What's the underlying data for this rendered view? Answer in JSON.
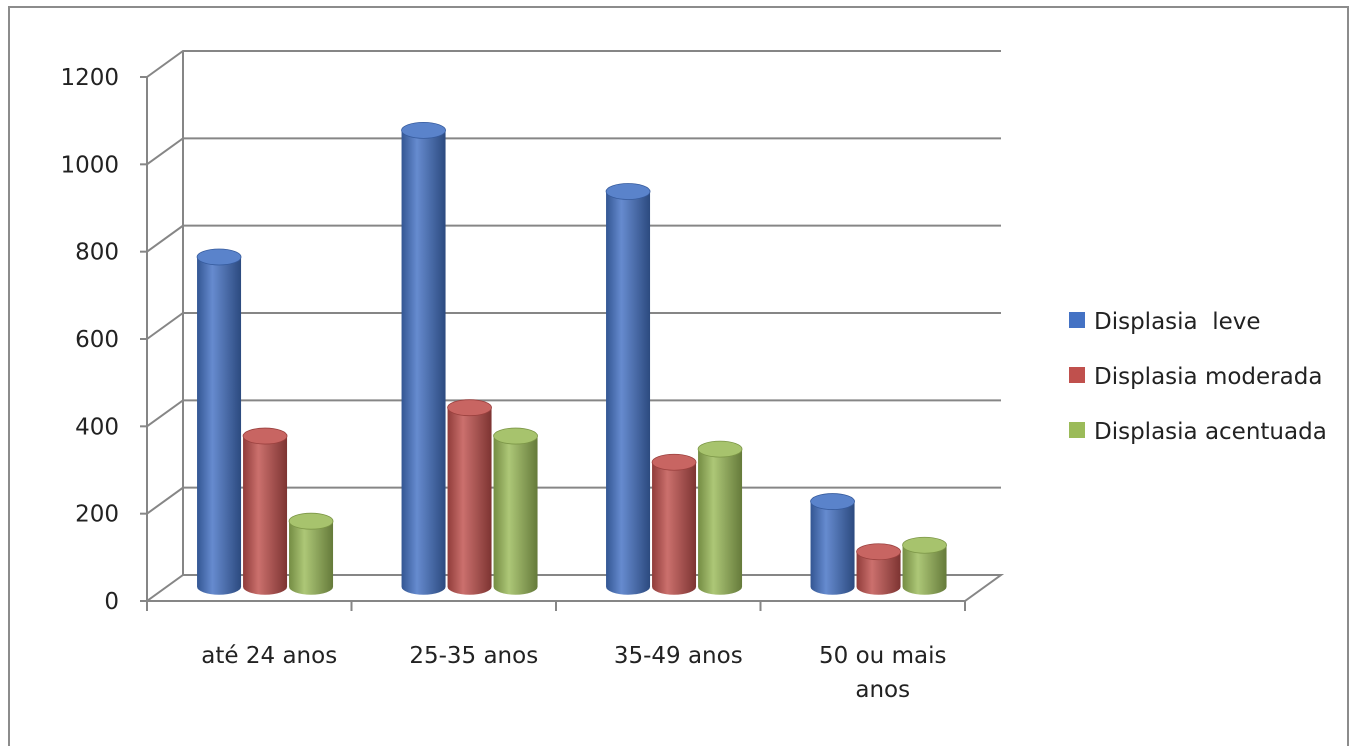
{
  "chart_data": {
    "type": "bar",
    "style": "3d-cylinder",
    "categories": [
      "até 24 anos",
      "25-35 anos",
      "35-49 anos",
      "50 ou mais anos"
    ],
    "category_label_lines": [
      [
        "até 24 anos"
      ],
      [
        "25-35 anos"
      ],
      [
        "35-49 anos"
      ],
      [
        "50 ou mais",
        "anos"
      ]
    ],
    "series": [
      {
        "name": "Displasia  leve",
        "color": "#4472C4",
        "values": [
          755,
          1045,
          905,
          195
        ]
      },
      {
        "name": "Displasia moderada",
        "color": "#C0504D",
        "values": [
          345,
          410,
          285,
          80
        ]
      },
      {
        "name": "Displasia acentuada",
        "color": "#9BBB59",
        "values": [
          150,
          345,
          315,
          95
        ]
      }
    ],
    "ylim": [
      0,
      1200
    ],
    "yticks": [
      "0",
      "200",
      "400",
      "600",
      "800",
      "1000",
      "1200"
    ],
    "grid": true,
    "legend_position": "right",
    "title": "",
    "xlabel": "",
    "ylabel": ""
  }
}
